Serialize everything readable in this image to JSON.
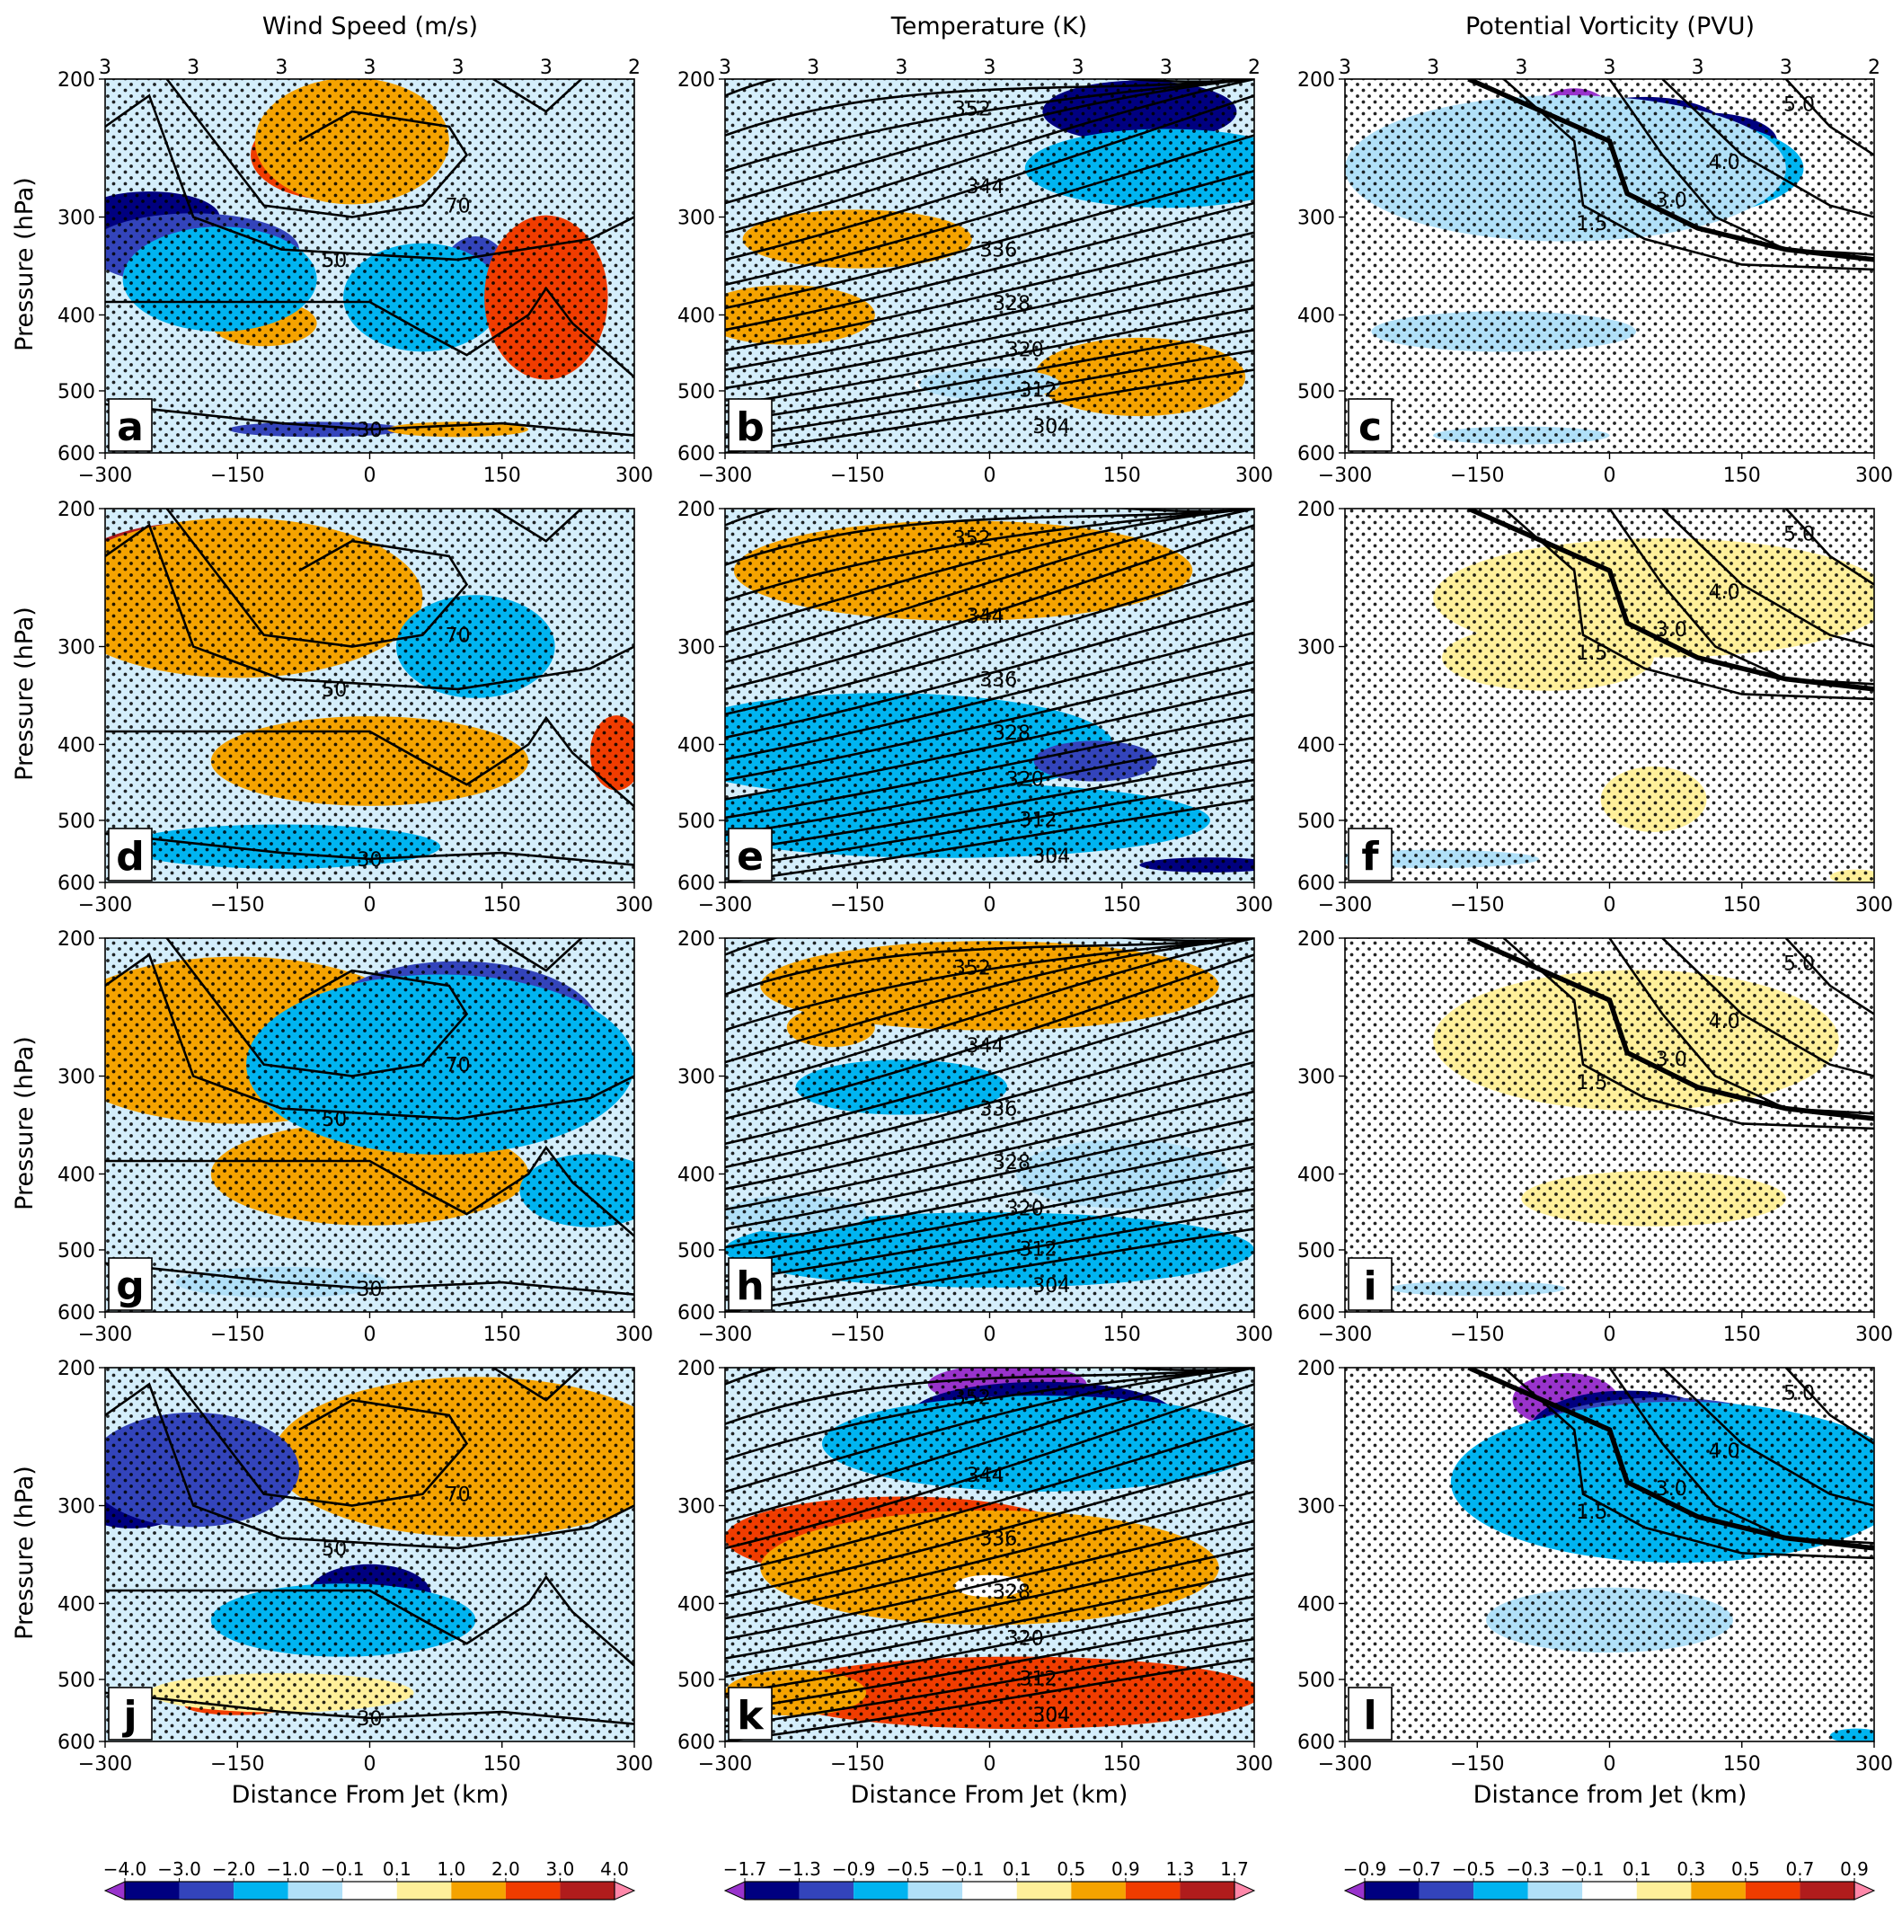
{
  "columns": [
    {
      "title": "Wind Speed (m/s)",
      "xlabel": "Distance From Jet (km)",
      "colorbar": {
        "ticks": [
          "−4.0",
          "−3.0",
          "−2.0",
          "−1.0",
          "−0.1",
          "0.1",
          "1.0",
          "2.0",
          "3.0",
          "4.0"
        ],
        "colors": [
          "#9933cc",
          "#000080",
          "#3344bb",
          "#00b4f0",
          "#b0e0f8",
          "#ffffff",
          "#fff09a",
          "#f5a300",
          "#f03c00",
          "#b01c1c",
          "#ff88aa"
        ]
      }
    },
    {
      "title": "Temperature (K)",
      "xlabel": "Distance From Jet (km)",
      "colorbar": {
        "ticks": [
          "−1.7",
          "−1.3",
          "−0.9",
          "−0.5",
          "−0.1",
          "0.1",
          "0.5",
          "0.9",
          "1.3",
          "1.7"
        ],
        "colors": [
          "#9933cc",
          "#000080",
          "#3344bb",
          "#00b4f0",
          "#b0e0f8",
          "#ffffff",
          "#fff09a",
          "#f5a300",
          "#f03c00",
          "#b01c1c",
          "#ff88aa"
        ]
      }
    },
    {
      "title": "Potential Vorticity (PVU)",
      "xlabel": "Distance from Jet (km)",
      "colorbar": {
        "ticks": [
          "−0.9",
          "−0.7",
          "−0.5",
          "−0.3",
          "−0.1",
          "0.1",
          "0.3",
          "0.5",
          "0.7",
          "0.9"
        ],
        "colors": [
          "#9933cc",
          "#000080",
          "#3344bb",
          "#00b4f0",
          "#b0e0f8",
          "#ffffff",
          "#fff09a",
          "#f5a300",
          "#f03c00",
          "#b01c1c",
          "#ff88aa"
        ]
      }
    }
  ],
  "ylabel": "Pressure (hPa)",
  "panels": [
    {
      "letter": "a"
    },
    {
      "letter": "b"
    },
    {
      "letter": "c"
    },
    {
      "letter": "d"
    },
    {
      "letter": "e"
    },
    {
      "letter": "f"
    },
    {
      "letter": "g"
    },
    {
      "letter": "h"
    },
    {
      "letter": "i"
    },
    {
      "letter": "j"
    },
    {
      "letter": "k"
    },
    {
      "letter": "l"
    }
  ],
  "top_counts": [
    "3",
    "3",
    "3",
    "3",
    "3",
    "3",
    "2"
  ],
  "chart_data": {
    "type": "heatmap",
    "layout": "4 rows x 3 columns of filled-contour cross sections",
    "x_ticks": [
      -300,
      -150,
      0,
      150,
      300
    ],
    "x_tick_labels": [
      "−300",
      "−150",
      "0",
      "150",
      "300"
    ],
    "xlim": [
      -300,
      300
    ],
    "y_ticks": [
      200,
      300,
      400,
      500,
      600
    ],
    "ylim": [
      600,
      200
    ],
    "y_scale": "log",
    "contour_labels": {
      "wind": [
        "70",
        "50",
        "30"
      ],
      "temperature": [
        "352",
        "344",
        "336",
        "328",
        "320",
        "312",
        "304"
      ],
      "pv": [
        "1.5",
        "3.0",
        "4.0",
        "5.0"
      ]
    },
    "stippling": true,
    "blobs": [
      [
        [
          -50,
          230,
          70,
          35,
          "pink"
        ],
        [
          -45,
          250,
          90,
          65,
          "red"
        ],
        [
          -20,
          240,
          110,
          100,
          "orange"
        ],
        [
          -120,
          410,
          60,
          55,
          "orange"
        ],
        [
          -280,
          300,
          55,
          30,
          "purple"
        ],
        [
          -250,
          300,
          80,
          45,
          "navy"
        ],
        [
          -200,
          330,
          120,
          70,
          "blue"
        ],
        [
          -170,
          360,
          110,
          110,
          "cyan"
        ],
        [
          120,
          360,
          40,
          90,
          "blue"
        ],
        [
          60,
          380,
          90,
          120,
          "cyan"
        ],
        [
          200,
          390,
          30,
          55,
          "darkred"
        ],
        [
          200,
          380,
          70,
          180,
          "red"
        ],
        [
          -60,
          560,
          100,
          25,
          "blue"
        ],
        [
          100,
          560,
          80,
          25,
          "orange"
        ]
      ],
      [
        [
          200,
          240,
          40,
          30,
          "purple"
        ],
        [
          170,
          220,
          110,
          40,
          "navy"
        ],
        [
          200,
          260,
          160,
          60,
          "cyan"
        ],
        [
          -150,
          320,
          130,
          55,
          "orange"
        ],
        [
          -230,
          390,
          40,
          40,
          "red"
        ],
        [
          -230,
          400,
          100,
          70,
          "orange"
        ],
        [
          180,
          500,
          50,
          60,
          "red"
        ],
        [
          170,
          480,
          120,
          110,
          "orange"
        ],
        [
          -30,
          490,
          55,
          30,
          "white"
        ],
        [
          0,
          490,
          80,
          45,
          "lightblue"
        ]
      ],
      [
        [
          -40,
          220,
          40,
          30,
          "purple"
        ],
        [
          40,
          230,
          90,
          40,
          "navy"
        ],
        [
          110,
          240,
          80,
          40,
          "navy"
        ],
        [
          40,
          260,
          180,
          80,
          "cyan"
        ],
        [
          -50,
          260,
          250,
          110,
          "lightblue"
        ],
        [
          -100,
          410,
          60,
          20,
          "yellow"
        ],
        [
          -120,
          420,
          150,
          50,
          "lightblue"
        ],
        [
          -100,
          570,
          100,
          30,
          "lightblue"
        ]
      ],
      [
        [
          -200,
          240,
          90,
          60,
          "pink"
        ],
        [
          -200,
          250,
          150,
          90,
          "darkred"
        ],
        [
          -150,
          260,
          210,
          120,
          "orange"
        ],
        [
          0,
          410,
          25,
          45,
          "pink"
        ],
        [
          0,
          410,
          70,
          75,
          "darkred"
        ],
        [
          0,
          420,
          180,
          110,
          "orange"
        ],
        [
          280,
          410,
          30,
          90,
          "red"
        ],
        [
          -100,
          530,
          80,
          40,
          "blue"
        ],
        [
          -100,
          540,
          180,
          70,
          "cyan"
        ],
        [
          120,
          300,
          90,
          90,
          "cyan"
        ]
      ],
      [
        [
          100,
          250,
          60,
          40,
          "red"
        ],
        [
          -30,
          240,
          260,
          70,
          "orange"
        ],
        [
          -250,
          420,
          100,
          60,
          "lightblue"
        ],
        [
          -100,
          380,
          60,
          35,
          "blue"
        ],
        [
          -120,
          400,
          260,
          120,
          "cyan"
        ],
        [
          120,
          420,
          70,
          50,
          "blue"
        ],
        [
          0,
          520,
          60,
          20,
          "navy"
        ],
        [
          0,
          520,
          200,
          60,
          "blue"
        ],
        [
          250,
          570,
          80,
          25,
          "navy"
        ],
        [
          -50,
          500,
          300,
          110,
          "cyan"
        ]
      ],
      [
        [
          100,
          260,
          150,
          60,
          "orange"
        ],
        [
          60,
          260,
          260,
          90,
          "yellow"
        ],
        [
          -70,
          310,
          120,
          60,
          "yellow"
        ],
        [
          50,
          470,
          60,
          90,
          "yellow"
        ],
        [
          -200,
          560,
          120,
          30,
          "lightblue"
        ],
        [
          280,
          590,
          30,
          20,
          "yellow"
        ]
      ],
      [
        [
          -200,
          250,
          100,
          60,
          "pink"
        ],
        [
          -200,
          260,
          150,
          90,
          "darkred"
        ],
        [
          -150,
          270,
          220,
          130,
          "orange"
        ],
        [
          0,
          380,
          40,
          40,
          "pink"
        ],
        [
          0,
          390,
          80,
          80,
          "darkred"
        ],
        [
          0,
          400,
          180,
          120,
          "orange"
        ],
        [
          100,
          260,
          160,
          100,
          "blue"
        ],
        [
          80,
          290,
          220,
          150,
          "cyan"
        ],
        [
          -100,
          550,
          120,
          50,
          "lightblue"
        ],
        [
          250,
          420,
          80,
          90,
          "cyan"
        ]
      ],
      [
        [
          60,
          230,
          90,
          40,
          "red"
        ],
        [
          0,
          230,
          260,
          60,
          "orange"
        ],
        [
          -180,
          260,
          50,
          30,
          "orange"
        ],
        [
          -100,
          310,
          120,
          50,
          "cyan"
        ],
        [
          30,
          530,
          80,
          40,
          "navy"
        ],
        [
          60,
          520,
          150,
          70,
          "blue"
        ],
        [
          0,
          500,
          300,
          110,
          "cyan"
        ],
        [
          -220,
          450,
          80,
          50,
          "lightblue"
        ],
        [
          150,
          400,
          120,
          80,
          "lightblue"
        ]
      ],
      [
        [
          0,
          250,
          40,
          25,
          "red"
        ],
        [
          50,
          270,
          110,
          60,
          "orange"
        ],
        [
          30,
          270,
          230,
          110,
          "yellow"
        ],
        [
          50,
          430,
          150,
          70,
          "yellow"
        ],
        [
          -150,
          560,
          100,
          25,
          "lightblue"
        ]
      ],
      [
        [
          170,
          250,
          90,
          50,
          "pink"
        ],
        [
          150,
          260,
          160,
          90,
          "red"
        ],
        [
          120,
          260,
          230,
          120,
          "orange"
        ],
        [
          -230,
          270,
          50,
          45,
          "navy"
        ],
        [
          -270,
          300,
          60,
          40,
          "navy"
        ],
        [
          -200,
          270,
          120,
          90,
          "blue"
        ],
        [
          0,
          380,
          40,
          40,
          "purple"
        ],
        [
          0,
          390,
          70,
          70,
          "navy"
        ],
        [
          -30,
          420,
          150,
          90,
          "cyan"
        ],
        [
          -150,
          540,
          60,
          30,
          "red"
        ],
        [
          -100,
          520,
          150,
          60,
          "yellow"
        ]
      ],
      [
        [
          20,
          210,
          90,
          30,
          "purple"
        ],
        [
          60,
          230,
          150,
          45,
          "navy"
        ],
        [
          60,
          250,
          250,
          70,
          "cyan"
        ],
        [
          -100,
          330,
          200,
          80,
          "red"
        ],
        [
          0,
          360,
          260,
          120,
          "orange"
        ],
        [
          0,
          380,
          40,
          25,
          "white"
        ],
        [
          0,
          540,
          40,
          30,
          "pink"
        ],
        [
          0,
          530,
          110,
          70,
          "darkred"
        ],
        [
          30,
          520,
          280,
          110,
          "red"
        ],
        [
          -220,
          520,
          80,
          70,
          "orange"
        ]
      ],
      [
        [
          -50,
          220,
          60,
          35,
          "purple"
        ],
        [
          20,
          240,
          110,
          55,
          "navy"
        ],
        [
          60,
          260,
          180,
          90,
          "blue"
        ],
        [
          80,
          280,
          260,
          130,
          "cyan"
        ],
        [
          0,
          420,
          140,
          80,
          "lightblue"
        ],
        [
          280,
          590,
          30,
          20,
          "cyan"
        ]
      ]
    ]
  }
}
